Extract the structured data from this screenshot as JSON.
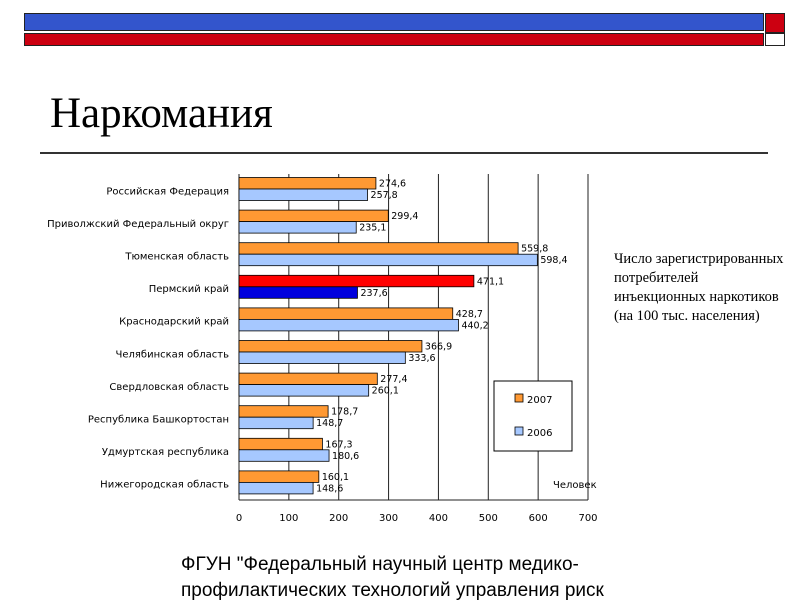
{
  "slide": {
    "title": "Наркомания",
    "caption": "Число зарегистрированных потребителей инъекционных наркотиков (на 100 тыс. населения)",
    "source": "ФГУН \"Федеральный научный центр медико-профилактических технологий управления риск"
  },
  "colors": {
    "series_2007": "#ff9933",
    "series_2006": "#a6c8ff",
    "highlight_2007": "#ff0000",
    "highlight_2006": "#0000dd"
  },
  "chart_data": {
    "type": "bar",
    "orientation": "horizontal",
    "title": "",
    "xlabel": "Человек",
    "ylabel": "",
    "xlim": [
      0,
      700
    ],
    "xticks": [
      "0",
      "100",
      "200",
      "300",
      "400",
      "500",
      "600",
      "700"
    ],
    "categories": [
      "Российская Федерация",
      "Приволжский Федеральный округ",
      "Тюменская область",
      "Пермский край",
      "Краснодарский край",
      "Челябинская область",
      "Свердловская область",
      "Республика Башкортостан",
      "Удмуртская республика",
      "Нижегородская область"
    ],
    "highlight_category": "Пермский край",
    "legend_position": "right",
    "series": [
      {
        "name": "2007",
        "values": [
          274.6,
          299.4,
          559.8,
          471.1,
          428.7,
          366.9,
          277.4,
          178.7,
          167.3,
          160.1
        ],
        "labels": [
          "274,6",
          "299,4",
          "559,8",
          "471,1",
          "428,7",
          "366,9",
          "277,4",
          "178,7",
          "167,3",
          "160,1"
        ]
      },
      {
        "name": "2006",
        "values": [
          257.8,
          235.1,
          598.4,
          237.6,
          440.2,
          333.6,
          260.1,
          148.7,
          180.6,
          148.6
        ],
        "labels": [
          "257,8",
          "235,1",
          "598,4",
          "237,6",
          "440,2",
          "333,6",
          "260,1",
          "148,7",
          "180,6",
          "148,6"
        ]
      }
    ]
  }
}
